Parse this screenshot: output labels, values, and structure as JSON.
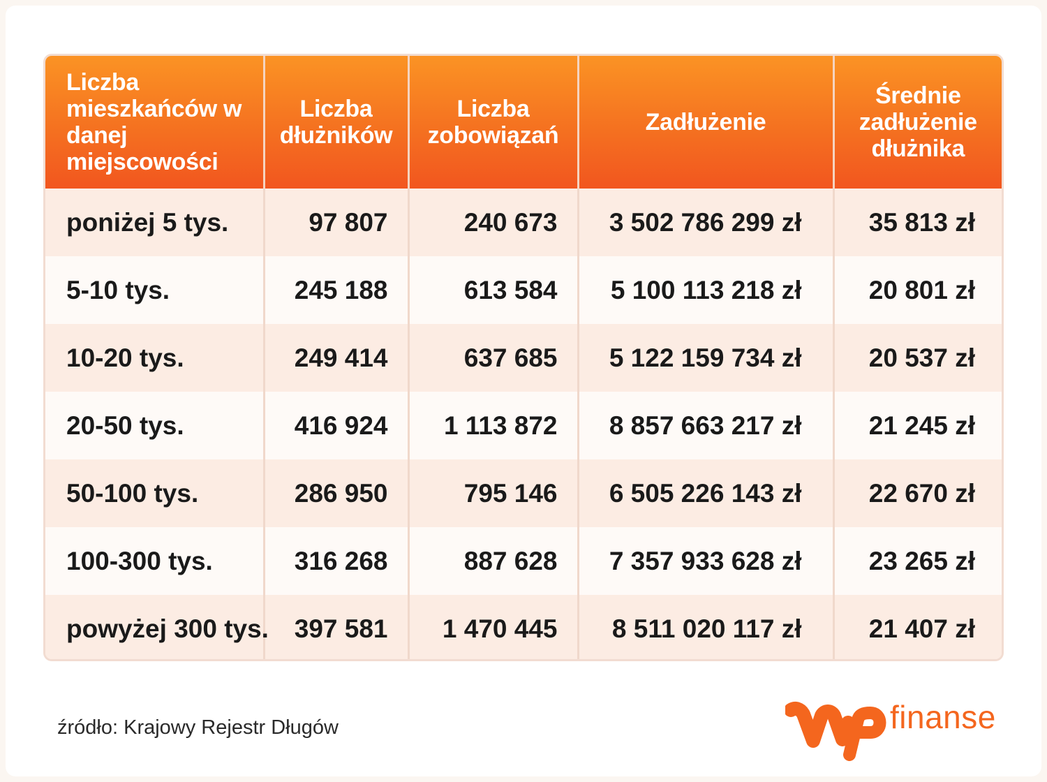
{
  "table": {
    "headers": [
      "Liczba mieszkańców w danej miejscowości",
      "Liczba dłużników",
      "Liczba zobowiązań",
      "Zadłużenie",
      "Średnie zadłużenie dłużnika"
    ],
    "rows": [
      [
        "poniżej 5 tys.",
        "97 807",
        "240 673",
        "3 502 786 299 zł",
        "35 813 zł"
      ],
      [
        "5-10 tys.",
        "245 188",
        "613 584",
        "5 100 113 218 zł",
        "20 801 zł"
      ],
      [
        "10-20 tys.",
        "249 414",
        "637 685",
        "5 122 159 734 zł",
        "20 537 zł"
      ],
      [
        "20-50 tys.",
        "416 924",
        "1 113 872",
        "8 857 663 217 zł",
        "21 245 zł"
      ],
      [
        "50-100 tys.",
        "286 950",
        "795 146",
        "6 505 226 143 zł",
        "22 670 zł"
      ],
      [
        "100-300 tys.",
        "316 268",
        "887 628",
        "7 357 933 628 zł",
        "23 265 zł"
      ],
      [
        "powyżej 300 tys.",
        "397 581",
        "1 470 445",
        "8 511 020 117 zł",
        "21 407 zł"
      ]
    ]
  },
  "footer": {
    "source": "źródło: Krajowy Rejestr Długów",
    "logo_text": "finanse",
    "brand_color": "#f4661e"
  }
}
